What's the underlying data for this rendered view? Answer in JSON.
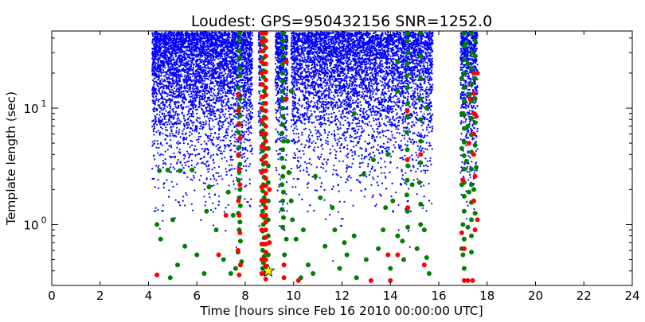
{
  "chart_data": {
    "type": "scatter",
    "title": "Loudest: GPS=950432156  SNR=1252.0",
    "xlabel": "Time [hours since Feb 16 2010 00:00:00 UTC]",
    "ylabel": "Template length (sec)",
    "xlim": [
      0,
      24
    ],
    "ylim": [
      0.3,
      46
    ],
    "yscale": "log",
    "grid": false,
    "legend": "none",
    "x_ticks": [
      0,
      2,
      4,
      6,
      8,
      10,
      12,
      14,
      16,
      18,
      20,
      22,
      24
    ],
    "y_ticks": [
      {
        "value": 1,
        "base": "10",
        "exp": "0"
      },
      {
        "value": 10,
        "base": "10",
        "exp": "1"
      }
    ],
    "data_segments": [
      {
        "start": 4.15,
        "end": 8.3
      },
      {
        "start": 8.55,
        "end": 8.65
      },
      {
        "start": 9.25,
        "end": 9.75
      },
      {
        "start": 9.9,
        "end": 15.75
      },
      {
        "start": 16.9,
        "end": 17.6
      }
    ],
    "template_length_max": 45,
    "template_length_min": 0.33,
    "series": [
      {
        "color": "#0000ff",
        "marker": "small dot"
      },
      {
        "color": "#008000",
        "marker": "circle"
      },
      {
        "color": "#ff0000",
        "marker": "circle"
      }
    ],
    "green_points": [
      [
        7.75,
        44
      ],
      [
        7.75,
        38
      ],
      [
        7.75,
        31
      ],
      [
        7.75,
        27
      ],
      [
        7.78,
        22
      ],
      [
        7.78,
        19
      ],
      [
        7.72,
        15
      ],
      [
        7.78,
        12
      ],
      [
        7.75,
        10
      ],
      [
        7.78,
        8.6
      ],
      [
        7.75,
        7.4
      ],
      [
        7.72,
        6.2
      ],
      [
        7.78,
        5.5
      ],
      [
        7.75,
        4.6
      ],
      [
        7.72,
        3.9
      ],
      [
        7.78,
        3.3
      ],
      [
        7.75,
        2.8
      ],
      [
        7.72,
        2.4
      ],
      [
        7.78,
        2.0
      ],
      [
        7.75,
        1.7
      ],
      [
        7.8,
        1.45
      ],
      [
        7.72,
        1.25
      ],
      [
        7.78,
        1.05
      ],
      [
        7.75,
        0.9
      ],
      [
        7.8,
        0.72
      ],
      [
        7.7,
        0.58
      ],
      [
        7.85,
        0.48
      ],
      [
        7.6,
        0.42
      ],
      [
        8.75,
        44
      ],
      [
        8.75,
        40
      ],
      [
        8.75,
        35
      ],
      [
        8.75,
        31
      ],
      [
        8.75,
        27
      ],
      [
        8.75,
        24
      ],
      [
        8.75,
        21
      ],
      [
        8.75,
        18.5
      ],
      [
        8.72,
        16
      ],
      [
        8.78,
        14
      ],
      [
        8.75,
        12.5
      ],
      [
        8.75,
        11
      ],
      [
        8.72,
        9.6
      ],
      [
        8.78,
        8.4
      ],
      [
        8.75,
        7.3
      ],
      [
        8.72,
        6.4
      ],
      [
        8.78,
        5.6
      ],
      [
        8.75,
        4.9
      ],
      [
        8.72,
        4.3
      ],
      [
        8.78,
        3.8
      ],
      [
        8.75,
        3.3
      ],
      [
        8.72,
        2.9
      ],
      [
        8.78,
        2.55
      ],
      [
        8.75,
        2.2
      ],
      [
        8.72,
        1.95
      ],
      [
        8.78,
        1.7
      ],
      [
        8.75,
        1.5
      ],
      [
        8.72,
        1.3
      ],
      [
        8.78,
        1.15
      ],
      [
        8.75,
        1.0
      ],
      [
        8.72,
        0.88
      ],
      [
        8.78,
        0.77
      ],
      [
        8.75,
        0.68
      ],
      [
        8.72,
        0.6
      ],
      [
        8.78,
        0.53
      ],
      [
        8.75,
        0.47
      ],
      [
        8.72,
        0.42
      ],
      [
        8.78,
        0.38
      ],
      [
        8.95,
        4.5
      ],
      [
        8.95,
        3.2
      ],
      [
        8.95,
        2.3
      ],
      [
        8.95,
        1.6
      ],
      [
        8.95,
        1.1
      ],
      [
        8.95,
        0.8
      ],
      [
        8.95,
        0.55
      ],
      [
        9.55,
        44
      ],
      [
        9.55,
        38
      ],
      [
        9.55,
        33
      ],
      [
        9.55,
        28
      ],
      [
        9.55,
        24
      ],
      [
        9.55,
        20
      ],
      [
        9.55,
        17
      ],
      [
        9.55,
        14
      ],
      [
        9.55,
        12
      ],
      [
        9.55,
        10
      ],
      [
        9.55,
        8.5
      ],
      [
        9.55,
        7.2
      ],
      [
        9.52,
        6.1
      ],
      [
        9.58,
        5.2
      ],
      [
        9.55,
        4.4
      ],
      [
        9.52,
        3.7
      ],
      [
        9.58,
        3.1
      ],
      [
        9.55,
        2.6
      ],
      [
        9.52,
        2.2
      ],
      [
        9.58,
        1.9
      ],
      [
        9.55,
        1.6
      ],
      [
        9.52,
        1.35
      ],
      [
        9.58,
        1.15
      ],
      [
        9.55,
        0.95
      ],
      [
        9.7,
        0.75
      ],
      [
        9.62,
        0.55
      ],
      [
        9.9,
        14
      ],
      [
        9.75,
        5.2
      ],
      [
        9.8,
        2.8
      ],
      [
        9.9,
        1.6
      ],
      [
        14.7,
        44
      ],
      [
        14.7,
        38
      ],
      [
        14.72,
        30
      ],
      [
        14.7,
        24
      ],
      [
        14.68,
        19
      ],
      [
        14.7,
        15
      ],
      [
        14.72,
        11
      ],
      [
        14.7,
        8.5
      ],
      [
        14.68,
        6.2
      ],
      [
        14.7,
        4.4
      ],
      [
        14.72,
        3.2
      ],
      [
        14.7,
        2.4
      ],
      [
        14.68,
        1.8
      ],
      [
        14.7,
        1.3
      ],
      [
        14.72,
        0.95
      ],
      [
        14.5,
        0.72
      ],
      [
        14.55,
        0.5
      ],
      [
        15.25,
        44
      ],
      [
        15.25,
        28
      ],
      [
        15.25,
        18
      ],
      [
        15.25,
        12
      ],
      [
        15.25,
        8
      ],
      [
        15.25,
        5.2
      ],
      [
        15.25,
        3.4
      ],
      [
        15.2,
        2.3
      ],
      [
        15.25,
        1.5
      ],
      [
        15.25,
        1.0
      ],
      [
        17.05,
        44
      ],
      [
        17.05,
        34
      ],
      [
        17.05,
        26
      ],
      [
        17.05,
        20
      ],
      [
        17.05,
        15
      ],
      [
        17.05,
        11.5
      ],
      [
        17.05,
        8.8
      ],
      [
        17.05,
        6.7
      ],
      [
        17.05,
        5.1
      ],
      [
        17.05,
        3.9
      ],
      [
        17.05,
        3.0
      ],
      [
        17.05,
        2.3
      ],
      [
        17.05,
        1.75
      ],
      [
        17.05,
        1.3
      ],
      [
        17.0,
        1.0
      ],
      [
        17.05,
        0.75
      ],
      [
        17.0,
        0.55
      ],
      [
        17.05,
        0.42
      ],
      [
        17.35,
        44
      ],
      [
        17.35,
        30
      ],
      [
        17.35,
        22
      ],
      [
        17.35,
        16
      ],
      [
        17.35,
        11.5
      ],
      [
        17.35,
        8.2
      ],
      [
        17.35,
        5.9
      ],
      [
        17.35,
        4.2
      ],
      [
        17.35,
        3.0
      ],
      [
        17.35,
        2.2
      ],
      [
        17.35,
        1.55
      ],
      [
        17.35,
        1.1
      ],
      [
        17.35,
        0.8
      ],
      [
        17.35,
        0.58
      ],
      [
        17.15,
        36
      ],
      [
        17.2,
        24
      ],
      [
        17.25,
        13
      ],
      [
        17.2,
        7
      ],
      [
        17.15,
        3.5
      ],
      [
        17.25,
        1.9
      ],
      [
        17.2,
        0.95
      ],
      [
        17.5,
        38
      ],
      [
        17.5,
        28
      ],
      [
        17.5,
        18
      ],
      [
        17.5,
        12
      ],
      [
        17.5,
        7.5
      ],
      [
        17.5,
        4.8
      ],
      [
        17.55,
        3.1
      ],
      [
        17.45,
        2.0
      ],
      [
        17.5,
        1.25
      ],
      [
        16.95,
        18
      ],
      [
        16.95,
        9
      ],
      [
        16.95,
        4.5
      ],
      [
        16.95,
        2.2
      ],
      [
        16.95,
        0.62
      ],
      [
        4.45,
        2.9
      ],
      [
        4.35,
        1.0
      ],
      [
        4.5,
        0.75
      ],
      [
        4.8,
        2.95
      ],
      [
        5.3,
        2.9
      ],
      [
        5.8,
        2.95
      ],
      [
        5.5,
        0.65
      ],
      [
        5.2,
        0.45
      ],
      [
        6.0,
        0.55
      ],
      [
        6.3,
        0.38
      ],
      [
        6.5,
        2.1
      ],
      [
        6.8,
        0.9
      ],
      [
        7.1,
        0.5
      ],
      [
        7.3,
        1.9
      ],
      [
        7.5,
        1.2
      ],
      [
        6.4,
        1.3
      ],
      [
        5.0,
        1.1
      ],
      [
        4.9,
        0.35
      ],
      [
        7.4,
        0.38
      ],
      [
        10.1,
        0.75
      ],
      [
        10.4,
        0.9
      ],
      [
        10.6,
        0.45
      ],
      [
        10.9,
        2.6
      ],
      [
        11.3,
        0.65
      ],
      [
        11.6,
        1.4
      ],
      [
        11.9,
        0.42
      ],
      [
        12.2,
        0.55
      ],
      [
        12.5,
        0.8
      ],
      [
        12.9,
        2.7
      ],
      [
        13.3,
        3.6
      ],
      [
        13.5,
        0.62
      ],
      [
        13.8,
        1.4
      ],
      [
        14.0,
        0.42
      ],
      [
        14.3,
        0.8
      ],
      [
        14.9,
        2.2
      ],
      [
        15.1,
        0.62
      ],
      [
        15.4,
        0.9
      ],
      [
        15.6,
        0.38
      ],
      [
        12.6,
        0.35
      ],
      [
        13.0,
        0.5
      ],
      [
        11.1,
        1.7
      ],
      [
        10.3,
        0.35
      ],
      [
        9.95,
        1.1
      ],
      [
        10.8,
        0.38
      ],
      [
        11.7,
        0.9
      ],
      [
        12.1,
        0.7
      ],
      [
        13.7,
        0.9
      ],
      [
        14.1,
        1.6
      ],
      [
        15.5,
        0.52
      ],
      [
        12.5,
        9.0
      ],
      [
        14.3,
        14.0
      ],
      [
        15.5,
        10.0
      ],
      [
        14.3,
        25.0
      ],
      [
        13.9,
        4.0
      ]
    ],
    "red_points": [
      [
        7.72,
        13
      ],
      [
        7.72,
        9.5
      ],
      [
        7.75,
        7.2
      ],
      [
        7.78,
        5.5
      ],
      [
        7.72,
        4.0
      ],
      [
        7.75,
        3.0
      ],
      [
        7.78,
        2.2
      ],
      [
        7.72,
        1.6
      ],
      [
        7.75,
        1.2
      ],
      [
        7.78,
        0.85
      ],
      [
        7.7,
        0.6
      ],
      [
        7.8,
        0.45
      ],
      [
        7.75,
        0.37
      ],
      [
        8.85,
        44
      ],
      [
        8.85,
        38
      ],
      [
        8.85,
        33
      ],
      [
        8.85,
        28
      ],
      [
        8.85,
        24
      ],
      [
        8.85,
        20.5
      ],
      [
        8.85,
        17.5
      ],
      [
        8.85,
        15
      ],
      [
        8.85,
        13
      ],
      [
        8.85,
        11
      ],
      [
        8.85,
        9.5
      ],
      [
        8.85,
        8.2
      ],
      [
        8.85,
        7
      ],
      [
        8.85,
        6
      ],
      [
        8.85,
        5.2
      ],
      [
        8.85,
        4.5
      ],
      [
        8.85,
        3.9
      ],
      [
        8.85,
        3.4
      ],
      [
        8.85,
        2.9
      ],
      [
        8.85,
        2.5
      ],
      [
        8.85,
        2.15
      ],
      [
        8.85,
        1.85
      ],
      [
        8.85,
        1.6
      ],
      [
        8.85,
        1.4
      ],
      [
        8.85,
        1.2
      ],
      [
        8.85,
        1.05
      ],
      [
        8.85,
        0.9
      ],
      [
        8.85,
        0.78
      ],
      [
        8.85,
        0.68
      ],
      [
        8.85,
        0.58
      ],
      [
        8.85,
        0.5
      ],
      [
        8.85,
        0.44
      ],
      [
        8.85,
        0.38
      ],
      [
        8.85,
        0.34
      ],
      [
        8.68,
        44
      ],
      [
        8.68,
        37
      ],
      [
        8.68,
        31
      ],
      [
        8.68,
        25
      ],
      [
        8.68,
        20
      ],
      [
        8.68,
        16
      ],
      [
        8.68,
        12.5
      ],
      [
        8.68,
        10
      ],
      [
        8.68,
        7.8
      ],
      [
        8.68,
        6
      ],
      [
        8.68,
        4.7
      ],
      [
        8.68,
        3.6
      ],
      [
        8.68,
        2.8
      ],
      [
        8.68,
        2.1
      ],
      [
        8.68,
        1.6
      ],
      [
        8.68,
        1.2
      ],
      [
        8.68,
        0.9
      ],
      [
        8.68,
        0.68
      ],
      [
        8.68,
        0.5
      ],
      [
        8.68,
        0.38
      ],
      [
        9.0,
        2.0
      ],
      [
        9.0,
        0.7
      ],
      [
        9.7,
        25
      ],
      [
        9.7,
        12
      ],
      [
        9.6,
        0.45
      ],
      [
        10.2,
        0.33
      ],
      [
        9.6,
        0.35
      ],
      [
        14.7,
        9.5
      ],
      [
        14.7,
        3.6
      ],
      [
        14.72,
        1.4
      ],
      [
        14.3,
        0.55
      ],
      [
        14.0,
        0.33
      ],
      [
        13.9,
        0.55
      ],
      [
        15.25,
        4.0
      ],
      [
        13.2,
        0.33
      ],
      [
        17.0,
        2.4
      ],
      [
        17.05,
        0.33
      ],
      [
        17.2,
        0.33
      ],
      [
        17.4,
        0.33
      ],
      [
        17.05,
        0.62
      ],
      [
        17.45,
        20
      ],
      [
        17.45,
        13.5
      ],
      [
        17.45,
        9
      ],
      [
        17.45,
        6
      ],
      [
        17.45,
        4
      ],
      [
        17.5,
        2.6
      ],
      [
        17.45,
        1.6
      ],
      [
        17.5,
        0.9
      ],
      [
        17.3,
        12
      ],
      [
        17.25,
        5
      ],
      [
        17.6,
        1.1
      ],
      [
        16.95,
        0.85
      ],
      [
        17.6,
        20
      ],
      [
        17.55,
        8.5
      ],
      [
        4.35,
        0.37
      ],
      [
        15.4,
        0.45
      ],
      [
        7.2,
        1.2
      ],
      [
        6.9,
        0.55
      ]
    ],
    "loudest_marker": {
      "x": 8.95,
      "y": 0.4,
      "color": "#ffff00",
      "shape": "star"
    }
  }
}
